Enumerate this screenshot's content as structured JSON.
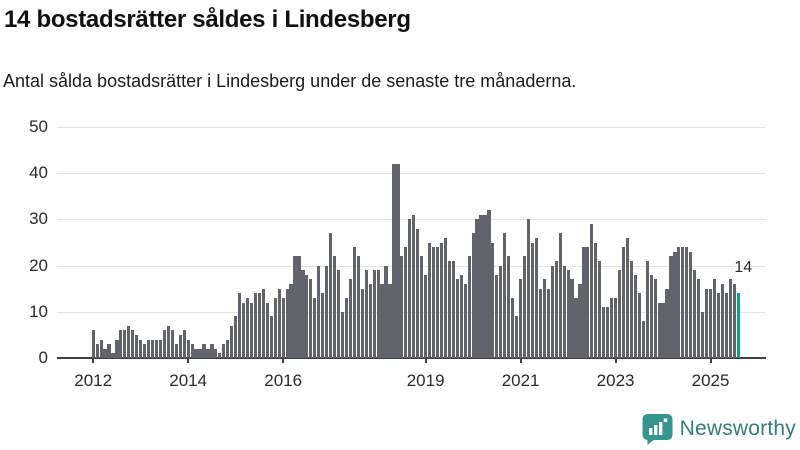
{
  "header": {
    "title": "14 bostadsrätter såldes i Lindesberg",
    "subtitle": "Antal sålda bostadsrätter i Lindesberg under de senaste tre månaderna."
  },
  "chart_data": {
    "type": "bar",
    "title": "14 bostadsrätter såldes i Lindesberg",
    "subtitle": "Antal sålda bostadsrätter i Lindesberg under de senaste tre månaderna.",
    "unit": "antal sålda bostadsrätter (rullande tre månader)",
    "frequency": "monthly",
    "x_start": "2012-01",
    "x_end": "2025-08",
    "ylim": [
      0,
      50
    ],
    "yticks": [
      0,
      10,
      20,
      30,
      40,
      50
    ],
    "xticks": [
      2012,
      2014,
      2016,
      2019,
      2021,
      2023,
      2025
    ],
    "grid": true,
    "legend": "none",
    "bar_color": "#63636b",
    "highlight_color": "#149a94",
    "highlight_last": true,
    "last_value": 14,
    "last_value_label": "14",
    "series_by_year": [
      {
        "year": 2012,
        "monthly": [
          6,
          3,
          4,
          2,
          3,
          1,
          4,
          6,
          6,
          7,
          6,
          5
        ]
      },
      {
        "year": 2013,
        "monthly": [
          4,
          3,
          4,
          4,
          4,
          4,
          6,
          7,
          6,
          3,
          5,
          6
        ]
      },
      {
        "year": 2014,
        "monthly": [
          4,
          3,
          2,
          2,
          3,
          2,
          3,
          2,
          1,
          3,
          4,
          7
        ]
      },
      {
        "year": 2015,
        "monthly": [
          9,
          14,
          12,
          13,
          12,
          14,
          14,
          15,
          12,
          9,
          13,
          15
        ]
      },
      {
        "year": 2016,
        "monthly": [
          13,
          15,
          16,
          22,
          22,
          19,
          18,
          17,
          13,
          20,
          14,
          20
        ]
      },
      {
        "year": 2017,
        "monthly": [
          27,
          22,
          19,
          10,
          13,
          17,
          24,
          22,
          15,
          19,
          16,
          19
        ]
      },
      {
        "year": 2018,
        "monthly": [
          19,
          16,
          20,
          16,
          42,
          42,
          22,
          24,
          30,
          31,
          28,
          22
        ]
      },
      {
        "year": 2019,
        "monthly": [
          18,
          25,
          24,
          24,
          25,
          26,
          21,
          21,
          17,
          18,
          16,
          22
        ]
      },
      {
        "year": 2020,
        "monthly": [
          27,
          30,
          31,
          31,
          32,
          25,
          18,
          20,
          27,
          22,
          13,
          9
        ]
      },
      {
        "year": 2021,
        "monthly": [
          17,
          22,
          30,
          25,
          26,
          15,
          17,
          15,
          20,
          21,
          27,
          20
        ]
      },
      {
        "year": 2022,
        "monthly": [
          19,
          17,
          13,
          16,
          24,
          24,
          29,
          25,
          21,
          11,
          11,
          13
        ]
      },
      {
        "year": 2023,
        "monthly": [
          13,
          19,
          24,
          26,
          21,
          18,
          14,
          8,
          21,
          18,
          17,
          12
        ]
      },
      {
        "year": 2024,
        "monthly": [
          12,
          15,
          22,
          23,
          24,
          24,
          24,
          23,
          19,
          17,
          10,
          15
        ]
      },
      {
        "year": 2025,
        "monthly": [
          15,
          17,
          14,
          16,
          14,
          17,
          16,
          14
        ]
      }
    ]
  },
  "footer": {
    "brand": "Newsworthy",
    "brand_color": "#387b7d",
    "logo_icon": "newsworthy-speech-bubble-chart-icon",
    "logo_icon_color": "#37948f"
  }
}
